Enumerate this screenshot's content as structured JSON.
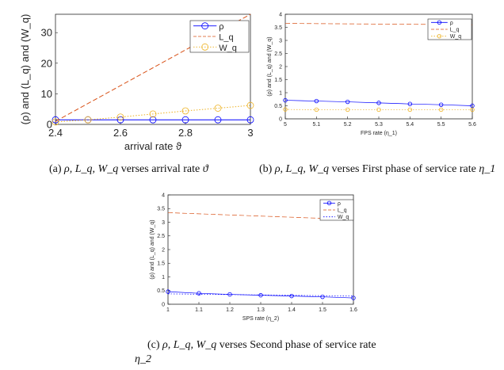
{
  "chart_data": [
    {
      "type": "line",
      "xlabel": "arrival rate ϑ",
      "ylabel": "(ρ) and (L_q) and (W_q)",
      "xlim": [
        2.4,
        3.0
      ],
      "ylim": [
        0,
        36
      ],
      "x_ticks": [
        "2.4",
        "2.6",
        "2.8",
        "3"
      ],
      "y_ticks": [
        "0",
        "10",
        "20",
        "30"
      ],
      "grid": false,
      "legend_position": "top-right",
      "series": [
        {
          "name": "ρ",
          "color": "#0000ff",
          "marker": "circle",
          "dash": "solid",
          "x": [
            2.4,
            2.5,
            2.6,
            2.7,
            2.8,
            2.9,
            3.0
          ],
          "values": [
            1.5,
            1.5,
            1.5,
            1.5,
            1.5,
            1.5,
            1.5
          ]
        },
        {
          "name": "L_q",
          "color": "#d95319",
          "marker": "none",
          "dash": "dashed",
          "x": [
            2.4,
            3.0
          ],
          "values": [
            1.0,
            36.0
          ]
        },
        {
          "name": "W_q",
          "color": "#edb120",
          "marker": "circle",
          "dash": "dotted",
          "x": [
            2.4,
            2.5,
            2.6,
            2.7,
            2.8,
            2.9,
            3.0
          ],
          "values": [
            0.8,
            1.5,
            2.4,
            3.4,
            4.4,
            5.3,
            6.2
          ]
        }
      ]
    },
    {
      "type": "line",
      "xlabel": "FPS rate (η_1)",
      "ylabel": "(ρ) and (L_q) and (W_q)",
      "xlim": [
        5,
        5.6
      ],
      "ylim": [
        0,
        4
      ],
      "x_ticks": [
        "5",
        "5.1",
        "5.2",
        "5.3",
        "5.4",
        "5.5",
        "5.6"
      ],
      "y_ticks": [
        "0",
        "0.5",
        "1",
        "1.5",
        "2",
        "2.5",
        "3",
        "3.5",
        "4"
      ],
      "grid": false,
      "legend_position": "top-right",
      "series": [
        {
          "name": "ρ",
          "color": "#0000ff",
          "marker": "circle",
          "dash": "solid",
          "x": [
            5,
            5.1,
            5.2,
            5.3,
            5.4,
            5.5,
            5.6
          ],
          "values": [
            0.71,
            0.68,
            0.65,
            0.61,
            0.57,
            0.54,
            0.5
          ]
        },
        {
          "name": "L_q",
          "color": "#d95319",
          "marker": "none",
          "dash": "dashed",
          "x": [
            5,
            5.6
          ],
          "values": [
            3.65,
            3.6
          ]
        },
        {
          "name": "W_q",
          "color": "#edb120",
          "marker": "circle",
          "dash": "dotted",
          "x": [
            5,
            5.1,
            5.2,
            5.3,
            5.4,
            5.5,
            5.6
          ],
          "values": [
            0.36,
            0.35,
            0.35,
            0.35,
            0.35,
            0.35,
            0.35
          ]
        }
      ]
    },
    {
      "type": "line",
      "xlabel": "SPS rate (η_2)",
      "ylabel": "(ρ) and (L_q) and (W_q)",
      "xlim": [
        1,
        1.6
      ],
      "ylim": [
        0,
        4
      ],
      "x_ticks": [
        "1",
        "1.1",
        "1.2",
        "1.3",
        "1.4",
        "1.5",
        "1.6"
      ],
      "y_ticks": [
        "0",
        "0.5",
        "1",
        "1.5",
        "2",
        "2.5",
        "3",
        "3.5",
        "4"
      ],
      "grid": false,
      "legend_position": "top-right",
      "series": [
        {
          "name": "ρ",
          "color": "#0000ff",
          "marker": "circle",
          "dash": "solid",
          "x": [
            1,
            1.1,
            1.2,
            1.3,
            1.4,
            1.5,
            1.6
          ],
          "values": [
            0.46,
            0.4,
            0.36,
            0.33,
            0.3,
            0.27,
            0.23
          ]
        },
        {
          "name": "L_q",
          "color": "#d95319",
          "marker": "none",
          "dash": "dashed",
          "x": [
            1,
            1.6
          ],
          "values": [
            3.35,
            3.1
          ]
        },
        {
          "name": "W_q",
          "color": "#0000ff",
          "marker": "none",
          "dash": "dotted",
          "x": [
            1,
            1.6
          ],
          "values": [
            0.38,
            0.3
          ]
        }
      ]
    }
  ],
  "captions": {
    "a": {
      "prefix": "(a) ",
      "math": "ρ, L_q, W_q",
      "text": " verses arrival rate ",
      "symbol": "ϑ"
    },
    "b": {
      "prefix": "(b) ",
      "math": "ρ, L_q, W_q",
      "text": " verses First phase of service rate ",
      "symbol": "η_1"
    },
    "c": {
      "prefix": "(c) ",
      "math": "ρ, L_q, W_q",
      "text": " verses Second phase of service rate",
      "symbol": "η_2"
    }
  }
}
